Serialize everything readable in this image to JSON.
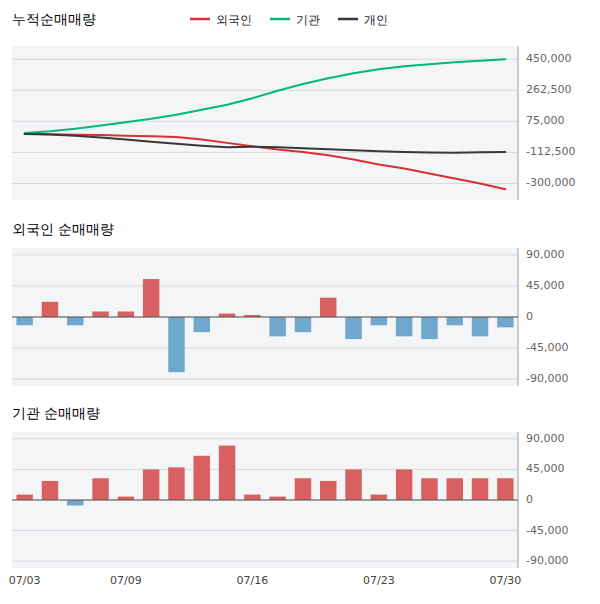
{
  "chart_data": [
    {
      "type": "line",
      "title": "누적순매매량",
      "categories": [
        null,
        null,
        null,
        null,
        null,
        null,
        null,
        null,
        null,
        null,
        null,
        null,
        null,
        null,
        null,
        null,
        null,
        null,
        null,
        null
      ],
      "series": [
        {
          "name": "외국인",
          "color": "#d93030",
          "values": [
            0,
            -3000,
            -6000,
            -8000,
            -12000,
            -15000,
            -20000,
            -35000,
            -55000,
            -75000,
            -95000,
            -110000,
            -130000,
            -155000,
            -185000,
            -210000,
            -240000,
            -270000,
            -300000,
            -335000
          ]
        },
        {
          "name": "기관",
          "color": "#00b87a",
          "values": [
            5000,
            15000,
            30000,
            50000,
            70000,
            90000,
            115000,
            145000,
            175000,
            215000,
            260000,
            300000,
            335000,
            365000,
            390000,
            408000,
            420000,
            432000,
            441000,
            450000
          ]
        },
        {
          "name": "개인",
          "color": "#383838",
          "values": [
            -2000,
            -5000,
            -12000,
            -22000,
            -35000,
            -48000,
            -60000,
            -72000,
            -82000,
            -78000,
            -82000,
            -88000,
            -93000,
            -100000,
            -106000,
            -110000,
            -113000,
            -115000,
            -112000,
            -110000
          ]
        }
      ],
      "ylim": [
        -400000,
        530000
      ],
      "yticks": [
        {
          "value": -300000,
          "label": "-300,000"
        },
        {
          "value": -112500,
          "label": "-112,500"
        },
        {
          "value": 75000,
          "label": "75,000"
        },
        {
          "value": 262500,
          "label": "262,500"
        },
        {
          "value": 450000,
          "label": "450,000"
        }
      ],
      "grid": true,
      "legend": "top",
      "tick_labels": "y"
    },
    {
      "type": "bar",
      "title": "외국인 순매매량",
      "categories": [
        null,
        null,
        null,
        null,
        null,
        null,
        null,
        null,
        null,
        null,
        null,
        null,
        null,
        null,
        null,
        null,
        null,
        null,
        null,
        null
      ],
      "values": [
        -12000,
        22000,
        -12000,
        8000,
        8000,
        55000,
        -80000,
        -22000,
        5000,
        3000,
        -28000,
        -22000,
        28000,
        -32000,
        -12000,
        -28000,
        -32000,
        -12000,
        -28000,
        -15000
      ],
      "colors": [
        "#6fa8cc",
        "#d96060",
        "#6fa8cc",
        "#d96060",
        "#d96060",
        "#d96060",
        "#6fa8cc",
        "#6fa8cc",
        "#d96060",
        "#d96060",
        "#6fa8cc",
        "#6fa8cc",
        "#d96060",
        "#6fa8cc",
        "#6fa8cc",
        "#6fa8cc",
        "#6fa8cc",
        "#6fa8cc",
        "#6fa8cc",
        "#6fa8cc"
      ],
      "ylim": [
        -100000,
        100000
      ],
      "yticks": [
        {
          "value": -90000,
          "label": "-90,000"
        },
        {
          "value": -45000,
          "label": "-45,000"
        },
        0,
        {
          "value": 45000,
          "label": "45,000"
        },
        {
          "value": 90000,
          "label": "90,000"
        }
      ],
      "grid": true,
      "tick_labels": "y"
    },
    {
      "type": "bar",
      "title": "기관 순매매량",
      "categories": [
        "07/03",
        null,
        null,
        null,
        "07/09",
        null,
        null,
        null,
        null,
        "07/16",
        null,
        null,
        null,
        null,
        "07/23",
        null,
        null,
        null,
        null,
        "07/30"
      ],
      "values": [
        8000,
        28000,
        -8000,
        32000,
        5000,
        45000,
        48000,
        65000,
        80000,
        8000,
        5000,
        32000,
        28000,
        45000,
        8000,
        45000,
        32000,
        32000,
        32000,
        32000
      ],
      "colors": [
        "#d96060",
        "#d96060",
        "#6fa8cc",
        "#d96060",
        "#d96060",
        "#d96060",
        "#d96060",
        "#d96060",
        "#d96060",
        "#d96060",
        "#d96060",
        "#d96060",
        "#d96060",
        "#d96060",
        "#d96060",
        "#d96060",
        "#d96060",
        "#d96060",
        "#d96060",
        "#d96060"
      ],
      "ylim": [
        -100000,
        100000
      ],
      "yticks": [
        {
          "value": -90000,
          "label": "-90,000"
        },
        {
          "value": -45000,
          "label": "-45,000"
        },
        0,
        {
          "value": 45000,
          "label": "45,000"
        },
        {
          "value": 90000,
          "label": "90,000"
        }
      ],
      "grid": true
    }
  ]
}
